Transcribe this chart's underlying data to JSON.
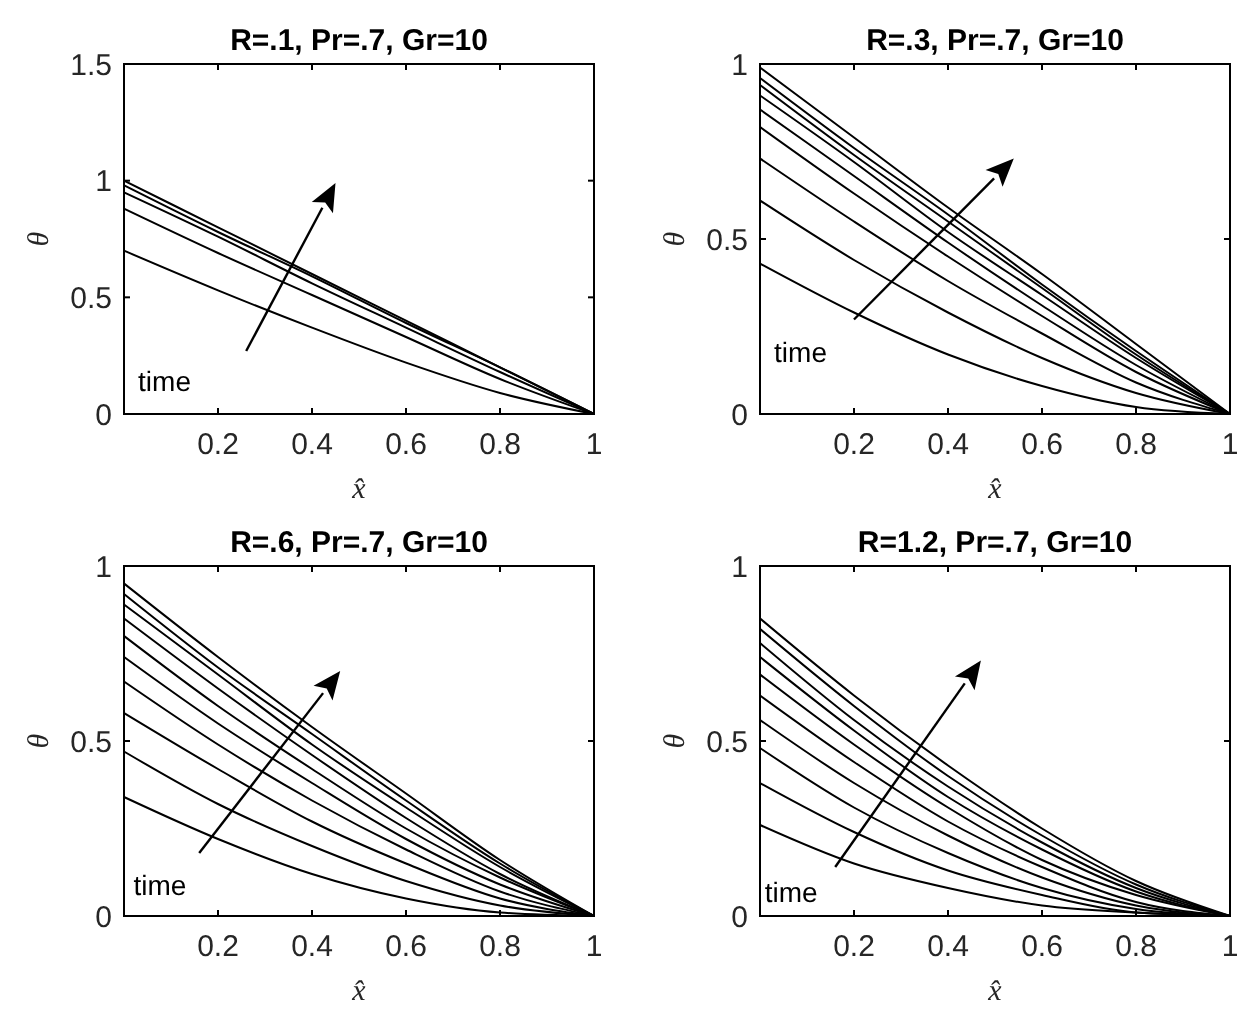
{
  "chart_data": [
    {
      "type": "line",
      "title": "R=.1, Pr=.7, Gr=10",
      "xlabel": "x̂",
      "ylabel": "θ",
      "x": [
        0,
        0.2,
        0.4,
        0.6,
        0.8,
        1
      ],
      "xlim": [
        0,
        1
      ],
      "ylim": [
        0,
        1.5
      ],
      "xticks": [
        0.2,
        0.4,
        0.6,
        0.8,
        1
      ],
      "yticks": [
        0,
        0.5,
        1,
        1.5
      ],
      "annotations": [
        "time"
      ],
      "series": [
        {
          "color": "#000000",
          "values": [
            0.7,
            0.53,
            0.37,
            0.22,
            0.09,
            0
          ]
        },
        {
          "color": "#000000",
          "values": [
            0.88,
            0.69,
            0.51,
            0.33,
            0.15,
            0
          ]
        },
        {
          "color": "#000000",
          "values": [
            0.95,
            0.76,
            0.56,
            0.37,
            0.18,
            0
          ]
        },
        {
          "color": "#000000",
          "values": [
            0.98,
            0.78,
            0.59,
            0.39,
            0.2,
            0
          ]
        },
        {
          "color": "#000000",
          "values": [
            1,
            0.8,
            0.6,
            0.4,
            0.2,
            0
          ]
        }
      ]
    },
    {
      "type": "line",
      "title": "R=.3, Pr=.7, Gr=10",
      "xlabel": "x̂",
      "ylabel": "θ",
      "x": [
        0,
        0.2,
        0.4,
        0.6,
        0.8,
        1
      ],
      "xlim": [
        0,
        1
      ],
      "ylim": [
        0,
        1
      ],
      "xticks": [
        0.2,
        0.4,
        0.6,
        0.8,
        1
      ],
      "yticks": [
        0,
        0.5,
        1
      ],
      "annotations": [
        "time"
      ],
      "series": [
        {
          "color": "#000000",
          "values": [
            0.43,
            0.29,
            0.17,
            0.08,
            0.02,
            0
          ]
        },
        {
          "color": "#000000",
          "values": [
            0.61,
            0.44,
            0.29,
            0.16,
            0.06,
            0
          ]
        },
        {
          "color": "#000000",
          "values": [
            0.73,
            0.55,
            0.38,
            0.23,
            0.09,
            0
          ]
        },
        {
          "color": "#000000",
          "values": [
            0.82,
            0.63,
            0.45,
            0.28,
            0.12,
            0
          ]
        },
        {
          "color": "#000000",
          "values": [
            0.87,
            0.68,
            0.49,
            0.31,
            0.14,
            0
          ]
        },
        {
          "color": "#000000",
          "values": [
            0.91,
            0.72,
            0.52,
            0.34,
            0.16,
            0
          ]
        },
        {
          "color": "#000000",
          "values": [
            0.94,
            0.74,
            0.55,
            0.36,
            0.17,
            0
          ]
        },
        {
          "color": "#000000",
          "values": [
            0.96,
            0.76,
            0.57,
            0.37,
            0.18,
            0
          ]
        },
        {
          "color": "#000000",
          "values": [
            0.99,
            0.79,
            0.59,
            0.4,
            0.2,
            0
          ]
        }
      ]
    },
    {
      "type": "line",
      "title": "R=.6, Pr=.7, Gr=10",
      "xlabel": "x̂",
      "ylabel": "θ",
      "x": [
        0,
        0.2,
        0.4,
        0.6,
        0.8,
        1
      ],
      "xlim": [
        0,
        1
      ],
      "ylim": [
        0,
        1
      ],
      "xticks": [
        0.2,
        0.4,
        0.6,
        0.8,
        1
      ],
      "yticks": [
        0,
        0.5,
        1
      ],
      "annotations": [
        "time"
      ],
      "series": [
        {
          "color": "#000000",
          "values": [
            0.34,
            0.22,
            0.12,
            0.05,
            0.01,
            0
          ]
        },
        {
          "color": "#000000",
          "values": [
            0.47,
            0.32,
            0.2,
            0.1,
            0.03,
            0
          ]
        },
        {
          "color": "#000000",
          "values": [
            0.58,
            0.42,
            0.27,
            0.15,
            0.05,
            0
          ]
        },
        {
          "color": "#000000",
          "values": [
            0.67,
            0.49,
            0.33,
            0.19,
            0.07,
            0
          ]
        },
        {
          "color": "#000000",
          "values": [
            0.74,
            0.55,
            0.38,
            0.22,
            0.09,
            0
          ]
        },
        {
          "color": "#000000",
          "values": [
            0.8,
            0.6,
            0.42,
            0.25,
            0.11,
            0
          ]
        },
        {
          "color": "#000000",
          "values": [
            0.85,
            0.65,
            0.46,
            0.28,
            0.12,
            0
          ]
        },
        {
          "color": "#000000",
          "values": [
            0.89,
            0.69,
            0.49,
            0.31,
            0.14,
            0
          ]
        },
        {
          "color": "#000000",
          "values": [
            0.92,
            0.71,
            0.52,
            0.33,
            0.15,
            0
          ]
        },
        {
          "color": "#000000",
          "values": [
            0.95,
            0.74,
            0.54,
            0.35,
            0.16,
            0
          ]
        }
      ]
    },
    {
      "type": "line",
      "title": "R=1.2, Pr=.7, Gr=10",
      "xlabel": "x̂",
      "ylabel": "θ",
      "x": [
        0,
        0.2,
        0.4,
        0.6,
        0.8,
        1
      ],
      "xlim": [
        0,
        1
      ],
      "ylim": [
        0,
        1
      ],
      "xticks": [
        0.2,
        0.4,
        0.6,
        0.8,
        1
      ],
      "yticks": [
        0,
        0.5,
        1
      ],
      "annotations": [
        "time"
      ],
      "series": [
        {
          "color": "#000000",
          "values": [
            0.26,
            0.15,
            0.08,
            0.03,
            0.01,
            0
          ]
        },
        {
          "color": "#000000",
          "values": [
            0.38,
            0.24,
            0.13,
            0.06,
            0.01,
            0
          ]
        },
        {
          "color": "#000000",
          "values": [
            0.48,
            0.31,
            0.18,
            0.08,
            0.02,
            0
          ]
        },
        {
          "color": "#000000",
          "values": [
            0.56,
            0.38,
            0.23,
            0.11,
            0.03,
            0
          ]
        },
        {
          "color": "#000000",
          "values": [
            0.63,
            0.44,
            0.27,
            0.14,
            0.04,
            0
          ]
        },
        {
          "color": "#000000",
          "values": [
            0.69,
            0.49,
            0.31,
            0.16,
            0.06,
            0
          ]
        },
        {
          "color": "#000000",
          "values": [
            0.74,
            0.53,
            0.34,
            0.19,
            0.07,
            0
          ]
        },
        {
          "color": "#000000",
          "values": [
            0.78,
            0.56,
            0.37,
            0.21,
            0.08,
            0
          ]
        },
        {
          "color": "#000000",
          "values": [
            0.82,
            0.6,
            0.4,
            0.23,
            0.09,
            0
          ]
        },
        {
          "color": "#000000",
          "values": [
            0.85,
            0.63,
            0.43,
            0.25,
            0.1,
            0
          ]
        }
      ]
    }
  ]
}
